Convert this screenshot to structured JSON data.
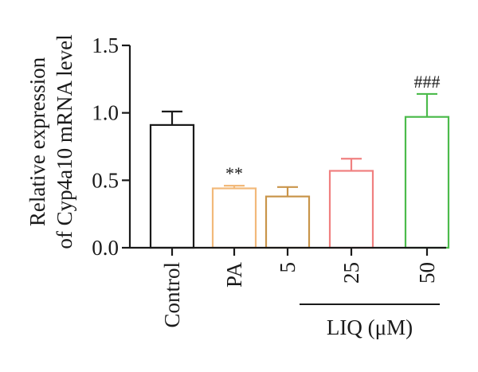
{
  "chart_data": {
    "type": "bar",
    "ylabel_line1": "Relative expression",
    "ylabel_line2": "of Cyp4a10 mRNA level",
    "ylim": [
      0,
      1.5
    ],
    "yticks": [
      "0.0",
      "0.5",
      "1.0",
      "1.5"
    ],
    "categories": [
      "Control",
      "PA",
      "5",
      "25",
      "50"
    ],
    "values": [
      0.91,
      0.44,
      0.38,
      0.57,
      0.97
    ],
    "errors": [
      0.1,
      0.02,
      0.07,
      0.09,
      0.17
    ],
    "colors": [
      "#1a1a1a",
      "#f2b97a",
      "#c9954a",
      "#f08080",
      "#4cbb4c"
    ],
    "annotations": [
      "",
      "**",
      "",
      "",
      "###"
    ],
    "group_label": "LIQ (μM)",
    "grid": false
  }
}
